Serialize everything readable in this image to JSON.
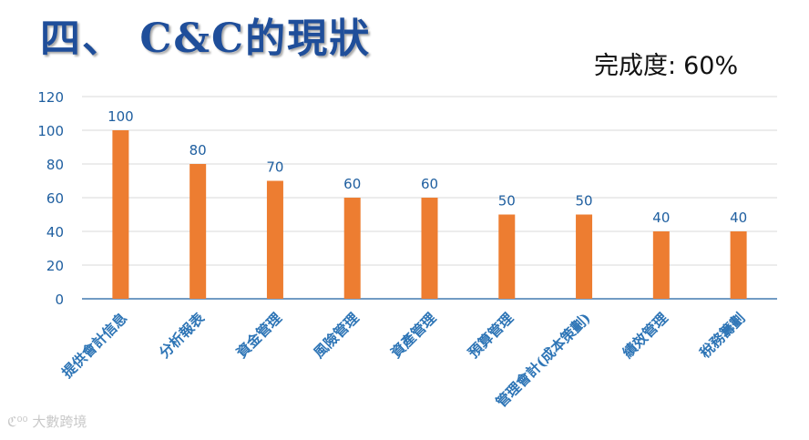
{
  "slide": {
    "title": "四、 C&C的現狀",
    "completion_label": "完成度:",
    "completion_value": "60%",
    "watermark": "大數跨境",
    "watermark_logo": "logo-icon"
  },
  "chart_data": {
    "type": "bar",
    "categories": [
      "提供會計信息",
      "分析報表",
      "資金管理",
      "風險管理",
      "資產管理",
      "預算管理",
      "管理會計(成本策劃)",
      "績效管理",
      "稅務籌劃"
    ],
    "values": [
      100,
      80,
      70,
      60,
      60,
      50,
      50,
      40,
      40
    ],
    "data_labels": [
      "100",
      "80",
      "70",
      "60",
      "60",
      "50",
      "50",
      "40",
      "40"
    ],
    "yticks": [
      "0",
      "20",
      "40",
      "60",
      "80",
      "100",
      "120"
    ],
    "ylim": [
      0,
      120
    ],
    "grid": true,
    "colors": {
      "bar": "#ed7d31",
      "data_label": "#1f5fa0",
      "axis_text": "#1f5fa0",
      "category_text": "#2e75b6",
      "grid": "#d9d9d9",
      "axis_line": "#1f5fa0"
    }
  }
}
